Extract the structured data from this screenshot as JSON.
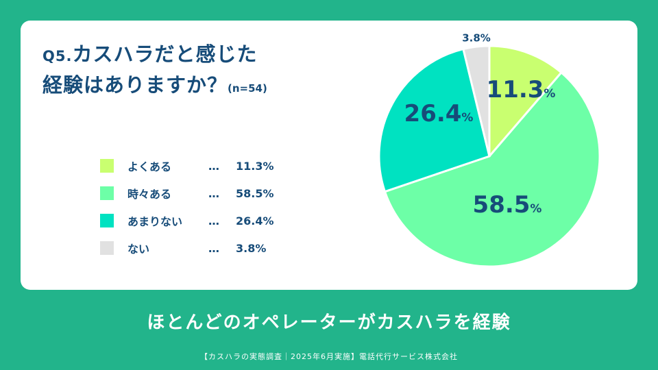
{
  "title": {
    "prefix": "Q5.",
    "line1": "カスハラだと感じた",
    "line2": "経験はありますか？",
    "n": "(n=54)"
  },
  "legend": [
    {
      "label": "よくある",
      "dots": "…",
      "value": "11.3%"
    },
    {
      "label": "時々ある",
      "dots": "…",
      "value": "58.5%"
    },
    {
      "label": "あまりない",
      "dots": "…",
      "value": "26.4%"
    },
    {
      "label": "ない",
      "dots": "…",
      "value": "3.8%"
    }
  ],
  "chart_data": {
    "type": "pie",
    "categories": [
      "よくある",
      "時々ある",
      "あまりない",
      "ない"
    ],
    "values": [
      11.3,
      58.5,
      26.4,
      3.8
    ],
    "labels": [
      "11.3",
      "58.5",
      "26.4",
      "3.8%"
    ],
    "unit": "%",
    "colors": [
      "#c9ff70",
      "#6dffa7",
      "#00e2c1",
      "#e1e1e1"
    ],
    "start": "12 o'clock, clockwise"
  },
  "footer": {
    "headline": "ほとんどのオペレーターがカスハラを経験",
    "source": "【カスハラの実態調査｜2025年6月実施】電話代行サービス株式会社"
  }
}
